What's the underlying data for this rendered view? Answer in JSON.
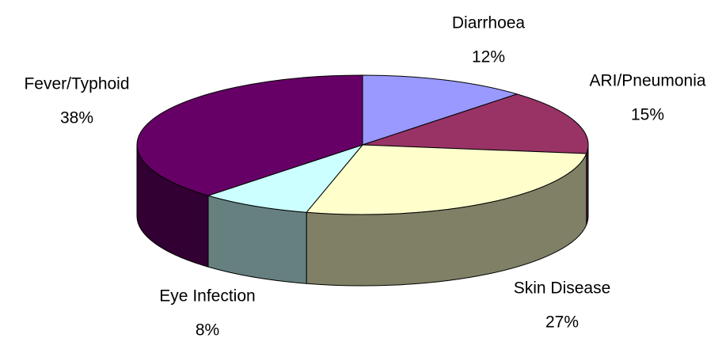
{
  "chart_data": {
    "type": "pie3d",
    "categories": [
      "Diarrhoea",
      "ARI/Pneumonia",
      "Skin Disease",
      "Eye Infection",
      "Fever/Typhoid"
    ],
    "values": [
      12,
      15,
      27,
      8,
      38
    ],
    "value_labels": [
      "12%",
      "15%",
      "27%",
      "8%",
      "38%"
    ],
    "colors": [
      "#9999ff",
      "#993366",
      "#ffffcc",
      "#ccffff",
      "#660066"
    ]
  }
}
